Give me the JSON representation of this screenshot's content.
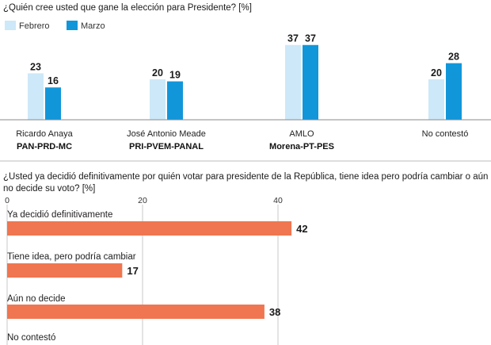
{
  "chart_data": [
    {
      "type": "bar",
      "title": "¿Quién cree usted que gane la elección para Presidente? [%]",
      "legend_position": "top-left",
      "colors": {
        "Febrero": "#cde8f8",
        "Marzo": "#1196da"
      },
      "categories": [
        {
          "name": "Ricardo Anaya",
          "party": "PAN-PRD-MC"
        },
        {
          "name": "José Antonio Meade",
          "party": "PRI-PVEM-PANAL"
        },
        {
          "name": "AMLO",
          "party": "Morena-PT-PES"
        },
        {
          "name": "No contestó",
          "party": ""
        }
      ],
      "series": [
        {
          "name": "Febrero",
          "values": [
            23,
            20,
            37,
            20
          ]
        },
        {
          "name": "Marzo",
          "values": [
            16,
            19,
            37,
            28
          ]
        }
      ],
      "ylim": [
        0,
        42
      ],
      "grid": false
    },
    {
      "type": "bar",
      "orientation": "horizontal",
      "title": "¿Usted ya decidió definitivamente por quién votar para presidente de la República, tiene idea pero podría cambiar o aún no decide su voto? [%]",
      "title_lines": [
        "¿Usted ya decidió definitivamente por quién votar para presidente de la República, tiene idea pero podría cambiar o aún",
        "no decide su voto? [%]"
      ],
      "color": "#ef7650",
      "categories": [
        "Ya decidió definitivamente",
        "Tiene idea, pero podría cambiar",
        "Aún no decide",
        "No contestó"
      ],
      "values": [
        42,
        17,
        38,
        null
      ],
      "xticks": [
        0,
        20,
        40
      ],
      "xlim": [
        0,
        42
      ],
      "grid": true
    }
  ]
}
